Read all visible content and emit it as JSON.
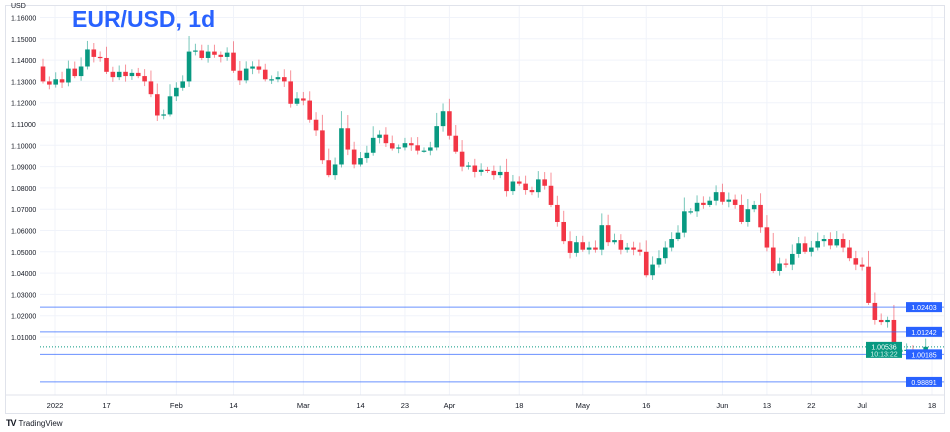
{
  "header": {
    "title": "EUR/USD, 1d",
    "currency": "USD"
  },
  "footer": {
    "brand": "TradingView",
    "logo_text": "TV"
  },
  "colors": {
    "up": "#089981",
    "down": "#f23645",
    "line": "#2962ff",
    "grid": "#f0f3fa"
  },
  "chart_data": {
    "type": "candlestick",
    "title": "EUR/USD, 1d",
    "ylabel": "USD",
    "ylim": [
      0.98,
      1.163
    ],
    "y_ticks": [
      "1.16000",
      "1.15000",
      "1.14000",
      "1.13000",
      "1.12000",
      "1.11000",
      "1.10000",
      "1.09000",
      "1.08000",
      "1.07000",
      "1.06000",
      "1.05000",
      "1.04000",
      "1.03000",
      "1.02000",
      "1.01000"
    ],
    "x_ticks": [
      {
        "label": "2022",
        "i": 0
      },
      {
        "label": "17",
        "i": 10
      },
      {
        "label": "Feb",
        "i": 21
      },
      {
        "label": "14",
        "i": 30
      },
      {
        "label": "Mar",
        "i": 41
      },
      {
        "label": "14",
        "i": 50
      },
      {
        "label": "23",
        "i": 57
      },
      {
        "label": "Apr",
        "i": 64
      },
      {
        "label": "18",
        "i": 75
      },
      {
        "label": "May",
        "i": 85
      },
      {
        "label": "16",
        "i": 95
      },
      {
        "label": "Jun",
        "i": 107
      },
      {
        "label": "13",
        "i": 114
      },
      {
        "label": "22",
        "i": 121
      },
      {
        "label": "Jul",
        "i": 129
      },
      {
        "label": "18",
        "i": 140
      }
    ],
    "grid": true,
    "first_open": 1.137,
    "closes": [
      1.13,
      1.1285,
      1.131,
      1.1295,
      1.136,
      1.1325,
      1.137,
      1.145,
      1.1415,
      1.141,
      1.1345,
      1.132,
      1.1345,
      1.1325,
      1.134,
      1.1325,
      1.13,
      1.124,
      1.114,
      1.1145,
      1.123,
      1.127,
      1.13,
      1.144,
      1.1445,
      1.141,
      1.144,
      1.1425,
      1.1415,
      1.1435,
      1.135,
      1.1305,
      1.136,
      1.137,
      1.1355,
      1.131,
      1.131,
      1.132,
      1.13,
      1.1195,
      1.122,
      1.121,
      1.112,
      1.107,
      1.093,
      1.086,
      1.091,
      1.108,
      1.098,
      1.091,
      1.094,
      1.0965,
      1.1035,
      1.105,
      1.101,
      1.0985,
      1.099,
      1.101,
      1.1,
      1.0975,
      1.0975,
      1.099,
      1.109,
      1.116,
      1.1045,
      1.097,
      1.09,
      1.0905,
      1.0875,
      1.0885,
      1.088,
      1.086,
      1.0875,
      1.0785,
      1.083,
      1.082,
      1.079,
      1.078,
      1.084,
      1.081,
      1.072,
      1.064,
      1.055,
      1.0495,
      1.0545,
      1.051,
      1.052,
      1.051,
      1.0625,
      1.0545,
      1.0555,
      1.051,
      1.052,
      1.051,
      1.05,
      1.039,
      1.044,
      1.047,
      1.052,
      1.056,
      1.059,
      1.069,
      1.069,
      1.073,
      1.072,
      1.074,
      1.078,
      1.0735,
      1.0745,
      1.072,
      1.064,
      1.07,
      1.072,
      1.0615,
      1.052,
      1.041,
      1.0445,
      1.044,
      1.049,
      1.054,
      1.05,
      1.052,
      1.055,
      1.056,
      1.053,
      1.056,
      1.052,
      1.047,
      1.044,
      1.043,
      1.026,
      1.018,
      1.017,
      1.018,
      1.003,
      1.004,
      1.004,
      1.002,
      1.002,
      1.0054
    ],
    "levels": [
      {
        "price": 1.02403,
        "label": "1.02403"
      },
      {
        "price": 1.01242,
        "label": "1.01242"
      },
      {
        "price": 1.00185,
        "label": "1.00185"
      },
      {
        "price": 0.98891,
        "label": "0.98891"
      }
    ],
    "current": {
      "price": 1.00536,
      "label": "1.00536",
      "timer": "10:13:22"
    }
  }
}
